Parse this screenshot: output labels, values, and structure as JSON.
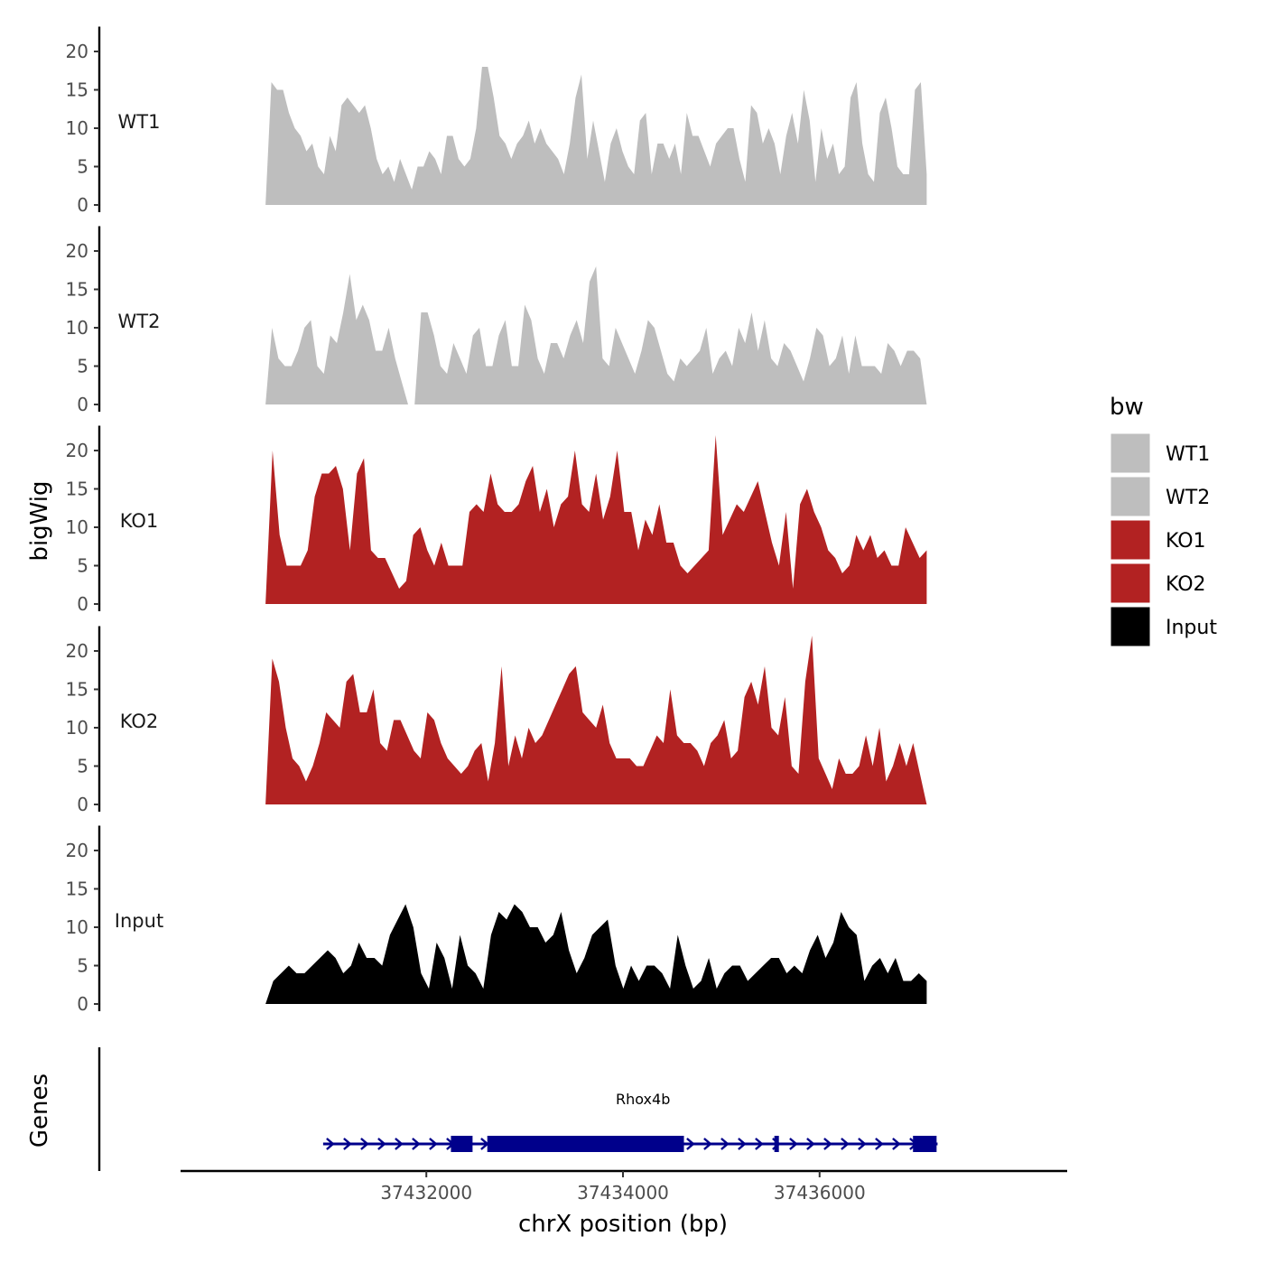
{
  "chart_data": {
    "type": "area",
    "ylabel": "bigWig",
    "genes_label": "Genes",
    "xlabel": "chrX position (bp)",
    "xlim": [
      37429500,
      37438500
    ],
    "x_ticks": [
      37432000,
      37434000,
      37436000
    ],
    "x_tick_labels": [
      "37432000",
      "37434000",
      "37436000"
    ],
    "ylim": [
      0,
      23
    ],
    "y_ticks": [
      0,
      5,
      10,
      15,
      20
    ],
    "y_tick_labels": [
      "0",
      "5",
      "10",
      "15",
      "20"
    ],
    "x_start": 37430364,
    "x_end": 37437089,
    "legend": {
      "title": "bw",
      "items": [
        {
          "label": "WT1",
          "color": "#bebebe"
        },
        {
          "label": "WT2",
          "color": "#bebebe"
        },
        {
          "label": "KO1",
          "color": "#b22222"
        },
        {
          "label": "KO2",
          "color": "#b22222"
        },
        {
          "label": "Input",
          "color": "#000000"
        }
      ]
    },
    "series": [
      {
        "name": "WT1",
        "color": "#bebebe",
        "values": [
          0,
          16,
          15,
          15,
          12,
          10,
          9,
          7,
          8,
          5,
          4,
          9,
          7,
          13,
          14,
          13,
          12,
          13,
          10,
          6,
          4,
          5,
          3,
          6,
          4,
          2,
          5,
          5,
          7,
          6,
          4,
          9,
          9,
          6,
          5,
          6,
          10,
          18,
          18,
          14,
          9,
          8,
          6,
          8,
          9,
          11,
          8,
          10,
          8,
          7,
          6,
          4,
          8,
          14,
          17,
          6,
          11,
          7,
          3,
          8,
          10,
          7,
          5,
          4,
          11,
          12,
          4,
          8,
          8,
          6,
          8,
          4,
          12,
          9,
          9,
          7,
          5,
          8,
          9,
          10,
          10,
          6,
          3,
          13,
          12,
          8,
          10,
          8,
          4,
          9,
          12,
          8,
          15,
          11,
          3,
          10,
          6,
          8,
          4,
          5,
          14,
          16,
          8,
          4,
          3,
          12,
          14,
          10,
          5,
          4,
          4,
          15,
          16,
          4
        ]
      },
      {
        "name": "WT2",
        "color": "#bebebe",
        "values": [
          0,
          10,
          6,
          5,
          5,
          7,
          10,
          11,
          5,
          4,
          9,
          8,
          12,
          17,
          11,
          13,
          11,
          7,
          7,
          10,
          6,
          3,
          0,
          0,
          12,
          12,
          9,
          5,
          4,
          8,
          6,
          4,
          9,
          10,
          5,
          5,
          9,
          11,
          5,
          5,
          13,
          11,
          6,
          4,
          8,
          8,
          6,
          9,
          11,
          8,
          16,
          18,
          6,
          5,
          10,
          8,
          6,
          4,
          7,
          11,
          10,
          7,
          4,
          3,
          6,
          5,
          6,
          7,
          10,
          4,
          6,
          7,
          5,
          10,
          8,
          12,
          7,
          11,
          6,
          5,
          8,
          7,
          5,
          3,
          6,
          10,
          9,
          5,
          6,
          9,
          4,
          9,
          5,
          5,
          5,
          4,
          8,
          7,
          5,
          7,
          7,
          6,
          0
        ]
      },
      {
        "name": "KO1",
        "color": "#b22222",
        "values": [
          0,
          20,
          9,
          5,
          5,
          5,
          7,
          14,
          17,
          17,
          18,
          15,
          7,
          17,
          19,
          7,
          6,
          6,
          4,
          2,
          3,
          9,
          10,
          7,
          5,
          8,
          5,
          5,
          5,
          12,
          13,
          12,
          17,
          13,
          12,
          12,
          13,
          16,
          18,
          12,
          15,
          10,
          13,
          14,
          20,
          13,
          12,
          17,
          11,
          14,
          20,
          12,
          12,
          7,
          11,
          9,
          13,
          8,
          8,
          5,
          4,
          5,
          6,
          7,
          22,
          9,
          11,
          13,
          12,
          14,
          16,
          12,
          8,
          5,
          12,
          2,
          13,
          15,
          12,
          10,
          7,
          6,
          4,
          5,
          9,
          7,
          9,
          6,
          7,
          5,
          5,
          10,
          8,
          6,
          7
        ]
      },
      {
        "name": "KO2",
        "color": "#b22222",
        "values": [
          0,
          19,
          16,
          10,
          6,
          5,
          3,
          5,
          8,
          12,
          11,
          10,
          16,
          17,
          12,
          12,
          15,
          8,
          7,
          11,
          11,
          9,
          7,
          6,
          12,
          11,
          8,
          6,
          5,
          4,
          5,
          7,
          8,
          3,
          8,
          18,
          5,
          9,
          6,
          10,
          8,
          9,
          11,
          13,
          15,
          17,
          18,
          12,
          11,
          10,
          13,
          8,
          6,
          6,
          6,
          5,
          5,
          7,
          9,
          8,
          15,
          9,
          8,
          8,
          7,
          5,
          8,
          9,
          11,
          6,
          7,
          14,
          16,
          13,
          18,
          10,
          9,
          14,
          5,
          4,
          16,
          22,
          6,
          4,
          2,
          6,
          4,
          4,
          5,
          9,
          5,
          10,
          3,
          5,
          8,
          5,
          8,
          4,
          0
        ]
      },
      {
        "name": "Input",
        "color": "#000000",
        "values": [
          0,
          3,
          4,
          5,
          4,
          4,
          5,
          6,
          7,
          6,
          4,
          5,
          8,
          6,
          6,
          5,
          9,
          11,
          13,
          10,
          4,
          2,
          8,
          6,
          2,
          9,
          5,
          4,
          2,
          9,
          12,
          11,
          13,
          12,
          10,
          10,
          8,
          9,
          12,
          7,
          4,
          6,
          9,
          10,
          11,
          5,
          2,
          5,
          3,
          5,
          5,
          4,
          2,
          9,
          5,
          2,
          3,
          6,
          2,
          4,
          5,
          5,
          3,
          4,
          5,
          6,
          6,
          4,
          5,
          4,
          7,
          9,
          6,
          8,
          12,
          10,
          9,
          3,
          5,
          6,
          4,
          6,
          3,
          3,
          4,
          3
        ]
      }
    ],
    "gene": {
      "name": "Rhox4b",
      "strand": "+",
      "start": 37430950,
      "end": 37437200,
      "exons": [
        [
          37432250,
          37432470
        ],
        [
          37432620,
          37434620
        ],
        [
          37435540,
          37435580
        ],
        [
          37436950,
          37437190
        ]
      ],
      "color": "#00008b"
    }
  }
}
